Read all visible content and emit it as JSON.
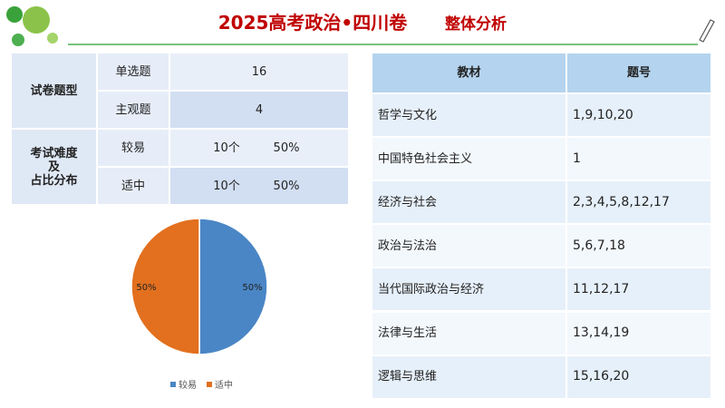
{
  "header": {
    "title": "2025高考政治•四川卷",
    "subtitle": "整体分析"
  },
  "exam_table": {
    "groups": [
      {
        "title": "试卷题型",
        "rows": [
          {
            "label": "单选题",
            "values": [
              "16"
            ]
          },
          {
            "label": "主观题",
            "values": [
              "4"
            ]
          }
        ]
      },
      {
        "title": "考试难度\n及\n占比分布",
        "rows": [
          {
            "label": "较易",
            "values": [
              "10个",
              "50%"
            ]
          },
          {
            "label": "适中",
            "values": [
              "10个",
              "50%"
            ]
          }
        ]
      }
    ]
  },
  "chart_data": {
    "type": "pie",
    "categories": [
      "较易",
      "适中"
    ],
    "values": [
      50,
      50
    ],
    "value_labels": [
      "50%",
      "50%"
    ],
    "colors": [
      "#4a86c5",
      "#e2701f"
    ]
  },
  "topic_table": {
    "header": [
      "教材",
      "题号"
    ],
    "rows": [
      [
        "哲学与文化",
        "1,9,10,20"
      ],
      [
        "中国特色社会主义",
        "1"
      ],
      [
        "经济与社会",
        "2,3,4,5,8,12,17"
      ],
      [
        "政治与法治",
        "5,6,7,18"
      ],
      [
        "当代国际政治与经济",
        "11,12,17"
      ],
      [
        "法律与生活",
        "13,14,19"
      ],
      [
        "逻辑与思维",
        "15,16,20"
      ]
    ]
  }
}
